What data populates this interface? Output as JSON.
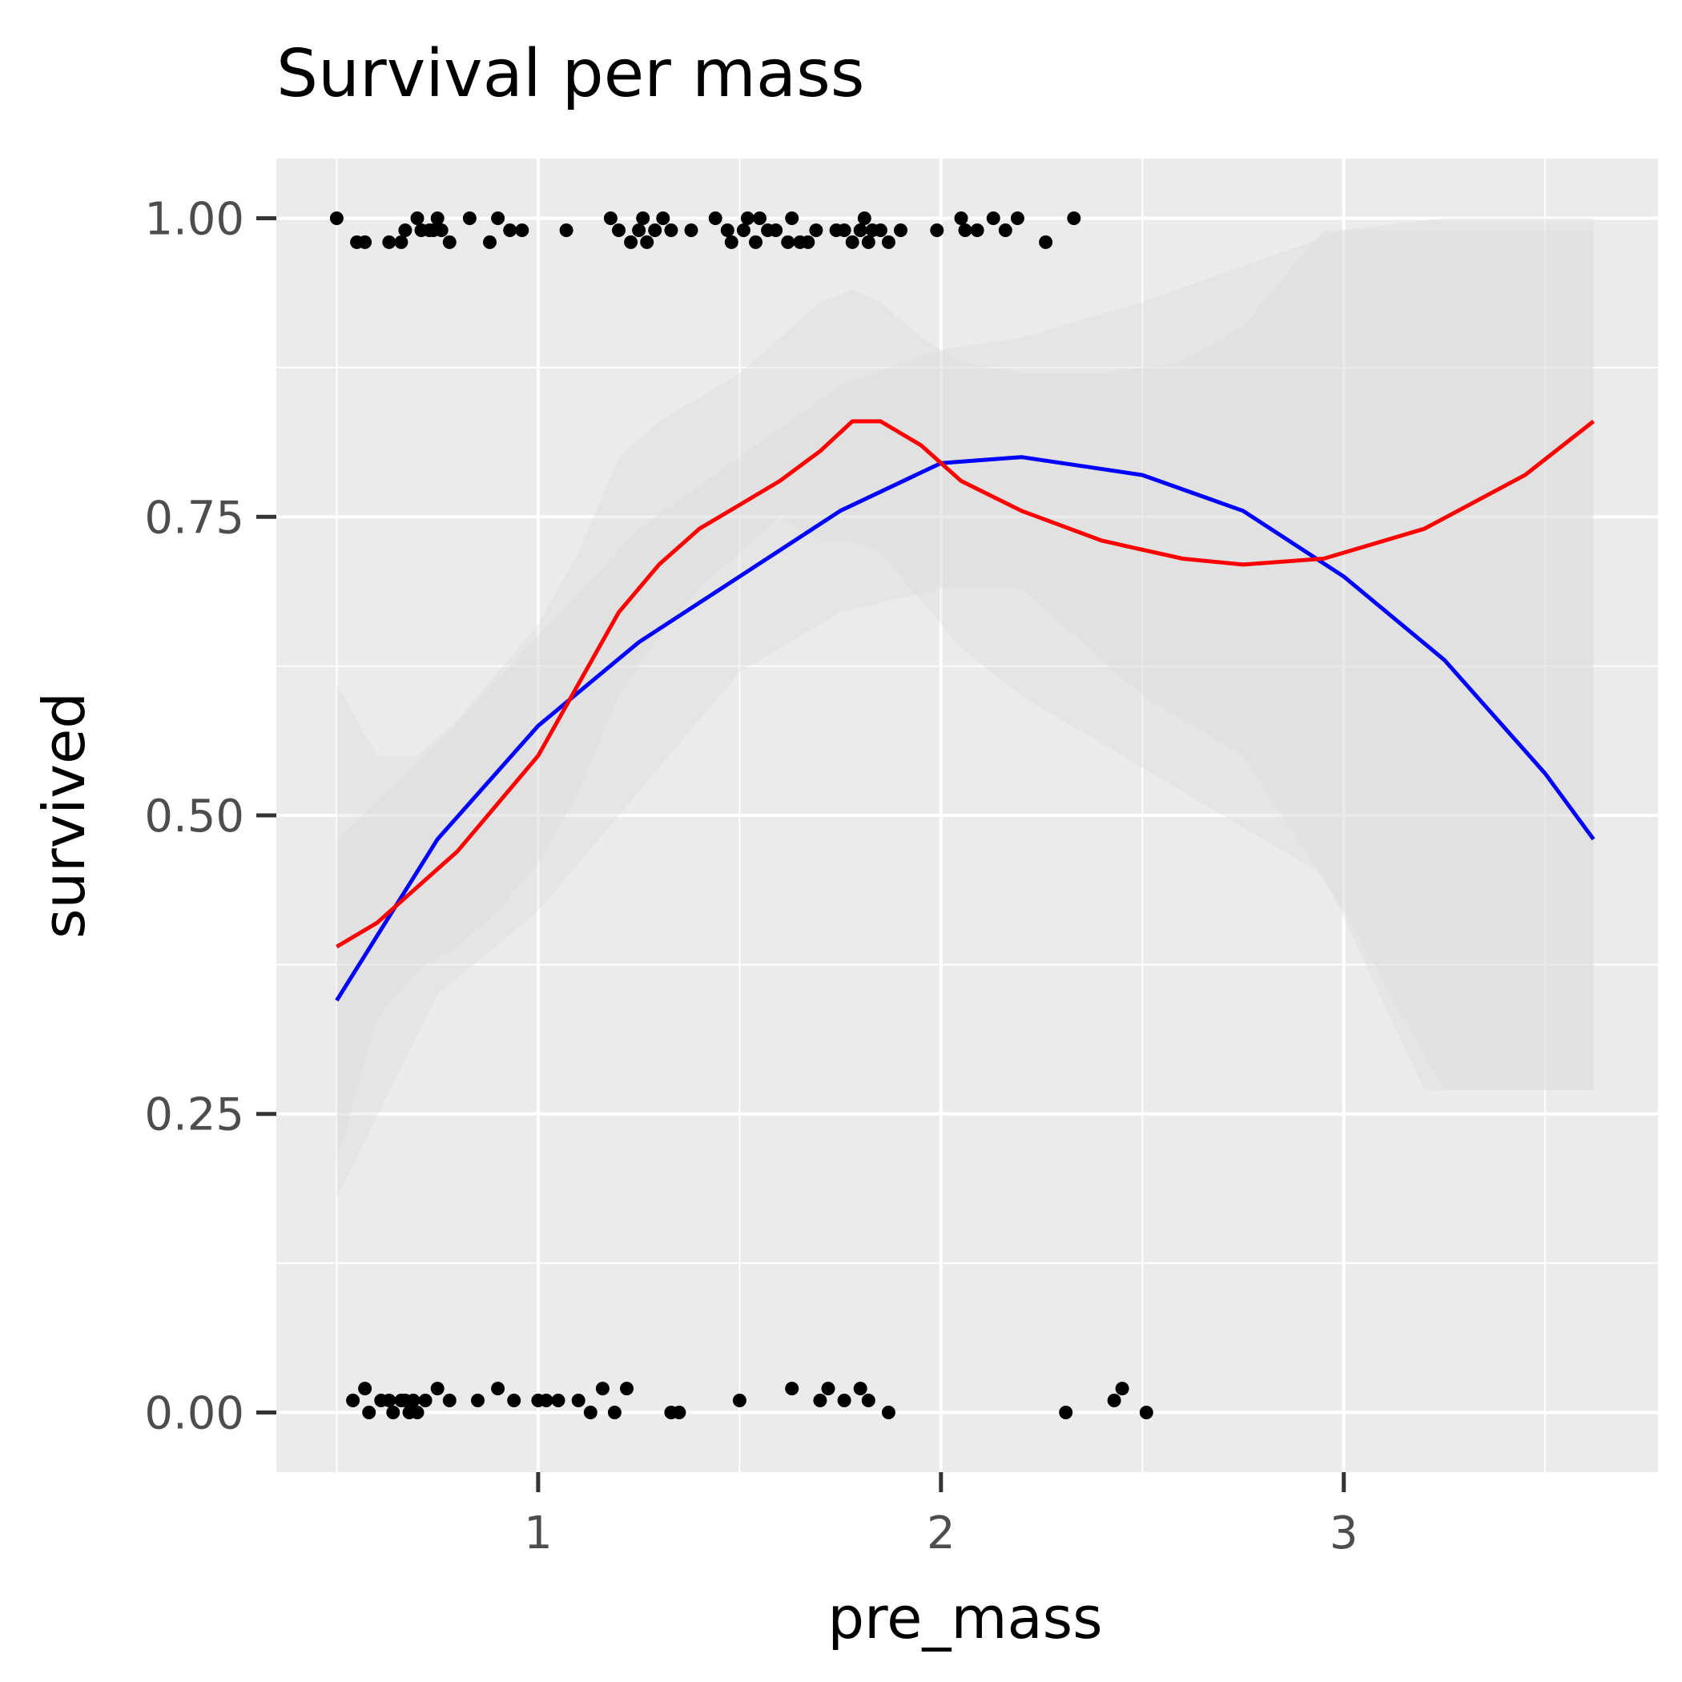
{
  "chart_data": {
    "type": "scatter",
    "title": "Survival per mass",
    "xlabel": "pre_mass",
    "ylabel": "survived",
    "xlim": [
      0.35,
      3.78
    ],
    "ylim": [
      -0.05,
      1.05
    ],
    "x_ticks": [
      1,
      2,
      3
    ],
    "y_ticks": [
      0.0,
      0.25,
      0.5,
      0.75,
      1.0
    ],
    "x_tick_labels": [
      "1",
      "2",
      "3"
    ],
    "y_tick_labels": [
      "0.00",
      "0.25",
      "0.50",
      "0.75",
      "1.00"
    ],
    "grid": true,
    "legend": "none",
    "colors": {
      "panel": "#ebebeb",
      "grid": "#ffffff",
      "points": "#000000",
      "logistic_curve": "#0000ff",
      "smooth_curve": "#ff0000",
      "ribbon": "#d9d9d9"
    },
    "points_survived_1": [
      [
        0.5,
        1.0
      ],
      [
        0.55,
        0.98
      ],
      [
        0.57,
        0.98
      ],
      [
        0.63,
        0.98
      ],
      [
        0.66,
        0.98
      ],
      [
        0.67,
        0.99
      ],
      [
        0.7,
        1.0
      ],
      [
        0.71,
        0.99
      ],
      [
        0.73,
        0.99
      ],
      [
        0.74,
        0.99
      ],
      [
        0.75,
        1.0
      ],
      [
        0.76,
        0.99
      ],
      [
        0.78,
        0.98
      ],
      [
        0.83,
        1.0
      ],
      [
        0.88,
        0.98
      ],
      [
        0.9,
        1.0
      ],
      [
        0.93,
        0.99
      ],
      [
        0.96,
        0.99
      ],
      [
        1.07,
        0.99
      ],
      [
        1.18,
        1.0
      ],
      [
        1.2,
        0.99
      ],
      [
        1.23,
        0.98
      ],
      [
        1.25,
        0.99
      ],
      [
        1.26,
        1.0
      ],
      [
        1.27,
        0.98
      ],
      [
        1.29,
        0.99
      ],
      [
        1.31,
        1.0
      ],
      [
        1.33,
        0.99
      ],
      [
        1.38,
        0.99
      ],
      [
        1.44,
        1.0
      ],
      [
        1.47,
        0.99
      ],
      [
        1.48,
        0.98
      ],
      [
        1.51,
        0.99
      ],
      [
        1.52,
        1.0
      ],
      [
        1.54,
        0.98
      ],
      [
        1.55,
        1.0
      ],
      [
        1.57,
        0.99
      ],
      [
        1.59,
        0.99
      ],
      [
        1.62,
        0.98
      ],
      [
        1.63,
        1.0
      ],
      [
        1.65,
        0.98
      ],
      [
        1.67,
        0.98
      ],
      [
        1.69,
        0.99
      ],
      [
        1.74,
        0.99
      ],
      [
        1.76,
        0.99
      ],
      [
        1.78,
        0.98
      ],
      [
        1.8,
        0.99
      ],
      [
        1.81,
        1.0
      ],
      [
        1.82,
        0.98
      ],
      [
        1.83,
        0.99
      ],
      [
        1.85,
        0.99
      ],
      [
        1.87,
        0.98
      ],
      [
        1.9,
        0.99
      ],
      [
        1.99,
        0.99
      ],
      [
        2.05,
        1.0
      ],
      [
        2.06,
        0.99
      ],
      [
        2.09,
        0.99
      ],
      [
        2.13,
        1.0
      ],
      [
        2.16,
        0.99
      ],
      [
        2.19,
        1.0
      ],
      [
        2.26,
        0.98
      ],
      [
        2.33,
        1.0
      ]
    ],
    "points_survived_0": [
      [
        0.54,
        0.01
      ],
      [
        0.57,
        0.02
      ],
      [
        0.58,
        0.0
      ],
      [
        0.61,
        0.01
      ],
      [
        0.63,
        0.01
      ],
      [
        0.64,
        0.0
      ],
      [
        0.66,
        0.01
      ],
      [
        0.67,
        0.01
      ],
      [
        0.68,
        0.0
      ],
      [
        0.69,
        0.01
      ],
      [
        0.7,
        0.0
      ],
      [
        0.72,
        0.01
      ],
      [
        0.75,
        0.02
      ],
      [
        0.78,
        0.01
      ],
      [
        0.85,
        0.01
      ],
      [
        0.9,
        0.02
      ],
      [
        0.94,
        0.01
      ],
      [
        1.0,
        0.01
      ],
      [
        1.02,
        0.01
      ],
      [
        1.05,
        0.01
      ],
      [
        1.1,
        0.01
      ],
      [
        1.13,
        0.0
      ],
      [
        1.16,
        0.02
      ],
      [
        1.19,
        0.0
      ],
      [
        1.22,
        0.02
      ],
      [
        1.33,
        0.0
      ],
      [
        1.35,
        0.0
      ],
      [
        1.5,
        0.01
      ],
      [
        1.63,
        0.02
      ],
      [
        1.7,
        0.01
      ],
      [
        1.72,
        0.02
      ],
      [
        1.76,
        0.01
      ],
      [
        1.8,
        0.02
      ],
      [
        1.82,
        0.01
      ],
      [
        1.87,
        0.0
      ],
      [
        2.31,
        0.0
      ],
      [
        2.43,
        0.01
      ],
      [
        2.45,
        0.02
      ],
      [
        2.51,
        0.0
      ]
    ],
    "series": [
      {
        "color": "#0000ff",
        "x": [
          0.5,
          0.75,
          1.0,
          1.25,
          1.5,
          1.75,
          2.0,
          2.2,
          2.5,
          2.75,
          3.0,
          3.25,
          3.5,
          3.62
        ],
        "y": [
          0.345,
          0.48,
          0.575,
          0.645,
          0.7,
          0.755,
          0.795,
          0.8,
          0.785,
          0.755,
          0.7,
          0.63,
          0.535,
          0.48
        ],
        "ci_low": [
          0.18,
          0.35,
          0.42,
          0.52,
          0.62,
          0.67,
          0.69,
          0.69,
          0.6,
          0.55,
          0.42,
          0.27,
          0.27,
          0.27
        ],
        "ci_high": [
          0.48,
          0.56,
          0.65,
          0.74,
          0.8,
          0.86,
          0.89,
          0.9,
          0.93,
          0.96,
          0.99,
          1.0,
          1.0,
          1.0
        ]
      },
      {
        "color": "#ff0000",
        "x": [
          0.5,
          0.6,
          0.7,
          0.8,
          0.9,
          1.0,
          1.1,
          1.2,
          1.3,
          1.4,
          1.5,
          1.6,
          1.7,
          1.78,
          1.85,
          1.95,
          2.05,
          2.2,
          2.4,
          2.6,
          2.75,
          2.95,
          3.2,
          3.45,
          3.62
        ],
        "y": [
          0.39,
          0.41,
          0.44,
          0.47,
          0.51,
          0.55,
          0.61,
          0.67,
          0.71,
          0.74,
          0.76,
          0.78,
          0.805,
          0.83,
          0.83,
          0.81,
          0.78,
          0.755,
          0.73,
          0.715,
          0.71,
          0.715,
          0.74,
          0.785,
          0.83
        ],
        "ci_low": [
          0.21,
          0.33,
          0.37,
          0.39,
          0.42,
          0.46,
          0.52,
          0.6,
          0.65,
          0.69,
          0.72,
          0.75,
          0.73,
          0.73,
          0.72,
          0.68,
          0.64,
          0.6,
          0.56,
          0.52,
          0.49,
          0.45,
          0.27,
          0.27,
          0.27
        ],
        "ci_high": [
          0.61,
          0.55,
          0.55,
          0.58,
          0.62,
          0.66,
          0.72,
          0.8,
          0.83,
          0.85,
          0.87,
          0.9,
          0.93,
          0.94,
          0.93,
          0.9,
          0.88,
          0.87,
          0.87,
          0.88,
          0.91,
          0.99,
          0.99,
          0.99,
          0.99
        ]
      }
    ]
  }
}
